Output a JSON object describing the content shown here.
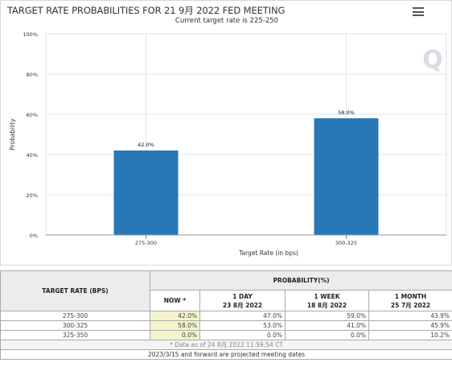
{
  "header": {
    "title": "TARGET RATE PROBABILITIES FOR 21 9月 2022 FED MEETING",
    "subtitle": "Current target rate is 225-250",
    "menu_icon": "hamburger-menu-icon",
    "watermark_icon": "q-watermark-icon"
  },
  "chart_data": {
    "type": "bar",
    "categories": [
      "275-300",
      "300-325"
    ],
    "values": [
      42.0,
      58.0
    ],
    "value_labels": [
      "42.0%",
      "58.0%"
    ],
    "xlabel": "Target Rate (in bps)",
    "ylabel": "Probability",
    "ylim": [
      0,
      100
    ],
    "yticks": [
      "0%",
      "20%",
      "40%",
      "60%",
      "80%",
      "100%"
    ],
    "grid": true,
    "bar_color": "#2878b8"
  },
  "table": {
    "col_target": "TARGET RATE (BPS)",
    "col_probability": "PROBABILITY(%)",
    "sub_headers": [
      {
        "line1": "NOW *",
        "line2": ""
      },
      {
        "line1": "1 DAY",
        "line2": "23 8月 2022"
      },
      {
        "line1": "1 WEEK",
        "line2": "18 8月 2022"
      },
      {
        "line1": "1 MONTH",
        "line2": "25 7月 2022"
      }
    ],
    "rows": [
      {
        "rate": "275-300",
        "now": "42.0%",
        "day": "47.0%",
        "week": "59.0%",
        "month": "43.9%"
      },
      {
        "rate": "300-325",
        "now": "58.0%",
        "day": "53.0%",
        "week": "41.0%",
        "month": "45.9%"
      },
      {
        "rate": "325-350",
        "now": "0.0%",
        "day": "0.0%",
        "week": "0.0%",
        "month": "10.2%"
      }
    ],
    "footnote": "* Data as of 24 8月 2022 11:59:54 CT",
    "projection_note": "2023/3/15 and forward are projected meeting dates"
  },
  "colors": {
    "bar": "#2878b8",
    "now_highlight": "#f4f4cc",
    "header_bg": "#ececec"
  }
}
